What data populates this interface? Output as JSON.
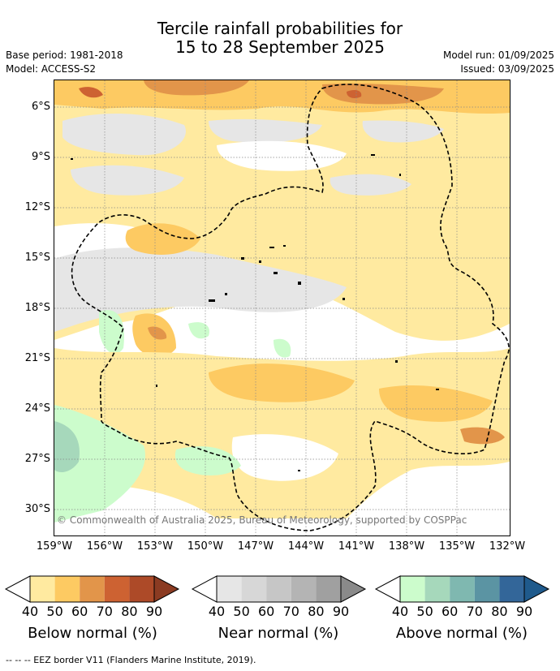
{
  "header": {
    "title_line1": "Tercile rainfall probabilities for",
    "title_line2": "15 to 28 September 2025",
    "base_period": "Base period: 1981-2018",
    "model": "Model: ACCESS-S2",
    "model_run": "Model run: 01/09/2025",
    "issued": "Issued: 03/09/2025"
  },
  "map": {
    "lat_labels": [
      "6°S",
      "9°S",
      "12°S",
      "15°S",
      "18°S",
      "21°S",
      "24°S",
      "27°S",
      "30°S"
    ],
    "lon_labels": [
      "159°W",
      "156°W",
      "153°W",
      "150°W",
      "147°W",
      "144°W",
      "141°W",
      "138°W",
      "135°W",
      "132°W"
    ],
    "copyright": "© Commonwealth of Australia 2025, Bureau of Meteorology, supported by COSPPac"
  },
  "legend": {
    "ticks": [
      "40",
      "50",
      "60",
      "70",
      "80",
      "90"
    ],
    "below": {
      "title": "Below normal (%)",
      "colors": [
        "#ffeaa0",
        "#fdca62",
        "#e2954a",
        "#cd6232",
        "#ad4a28",
        "#8b3b22"
      ]
    },
    "near": {
      "title": "Near normal (%)",
      "colors": [
        "#e6e6e6",
        "#d7d7d7",
        "#c6c6c6",
        "#b4b4b4",
        "#a0a0a0",
        "#8a8a8a"
      ]
    },
    "above": {
      "title": "Above normal (%)",
      "colors": [
        "#ccfccc",
        "#a6d8bb",
        "#7fb8b0",
        "#5b94a3",
        "#336699",
        "#1f5a8c"
      ]
    }
  },
  "footnote": "--  --  -- EEZ border V11 (Flanders Marine Institute, 2019)."
}
